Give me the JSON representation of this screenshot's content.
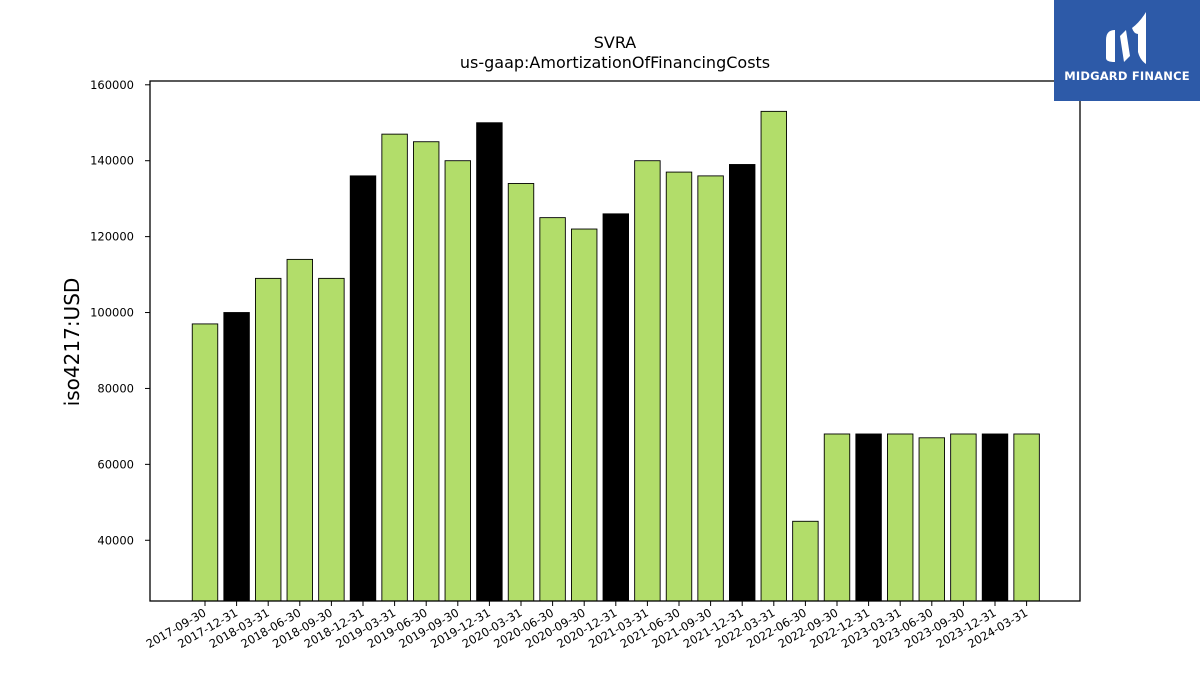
{
  "logo": {
    "text": "MIDGARD FINANCE",
    "bg_color": "#2d5aa8"
  },
  "chart_data": {
    "type": "bar",
    "title": "SVRA",
    "subtitle": "us-gaap:AmortizationOfFinancingCosts",
    "xlabel": "",
    "ylabel": "iso4217:USD",
    "ylim": [
      24000,
      161000
    ],
    "yticks": [
      40000,
      60000,
      80000,
      100000,
      120000,
      140000,
      160000
    ],
    "grid": false,
    "colors": {
      "quarter": "#b2dd6a",
      "year_end": "#000000",
      "edge": "#000000"
    },
    "categories": [
      "2017-09-30",
      "2017-12-31",
      "2018-03-31",
      "2018-06-30",
      "2018-09-30",
      "2018-12-31",
      "2019-03-31",
      "2019-06-30",
      "2019-09-30",
      "2019-12-31",
      "2020-03-31",
      "2020-06-30",
      "2020-09-30",
      "2020-12-31",
      "2021-03-31",
      "2021-06-30",
      "2021-09-30",
      "2021-12-31",
      "2022-03-31",
      "2022-06-30",
      "2022-09-30",
      "2022-12-31",
      "2023-03-31",
      "2023-06-30",
      "2023-09-30",
      "2023-12-31",
      "2024-03-31"
    ],
    "values": [
      97000,
      100000,
      109000,
      114000,
      109000,
      136000,
      147000,
      145000,
      140000,
      150000,
      134000,
      125000,
      122000,
      126000,
      140000,
      137000,
      136000,
      139000,
      153000,
      45000,
      68000,
      68000,
      68000,
      67000,
      68000,
      68000,
      68000
    ]
  }
}
